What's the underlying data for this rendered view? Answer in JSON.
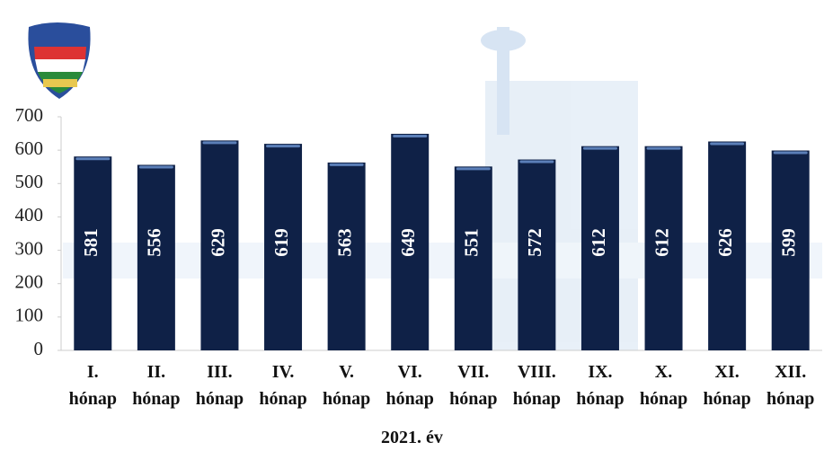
{
  "chart_data": {
    "type": "bar",
    "x_label": "2021. év",
    "categories": [
      "I. hónap",
      "II. hónap",
      "III. hónap",
      "IV. hónap",
      "V. hónap",
      "VI. hónap",
      "VII. hónap",
      "VIII. hónap",
      "IX. hónap",
      "X. hónap",
      "XI. hónap",
      "XII. hónap"
    ],
    "values": [
      581,
      556,
      629,
      619,
      563,
      649,
      551,
      572,
      612,
      612,
      626,
      599
    ],
    "color": "#0f2147",
    "ylim": [
      0,
      700
    ],
    "yticks": [
      0,
      100,
      200,
      300,
      400,
      500,
      600,
      700
    ]
  }
}
